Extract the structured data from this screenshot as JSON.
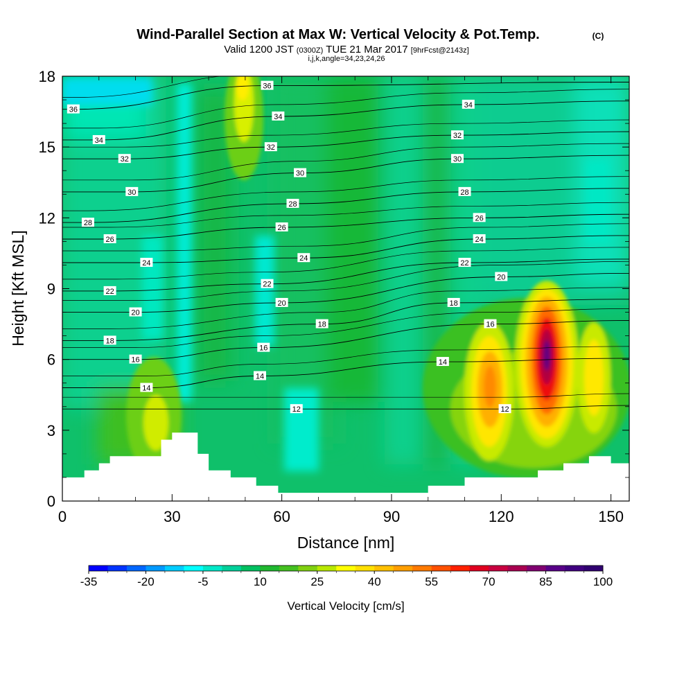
{
  "chart_data": {
    "type": "heatmap",
    "title": "Wind-Parallel Section at Max W: Vertical Velocity & Pot.Temp.",
    "title_unit": "(C)",
    "subtitle": {
      "prefix": "Valid 1200 JST",
      "zulu": "(0300Z)",
      "date": "TUE 21 Mar 2017",
      "forecast": "[9hrFcst@2143z]"
    },
    "indices": "i,j,k,angle=34,23,24,26",
    "xlabel": "Distance [nm]",
    "ylabel": "Height [Kft MSL]",
    "xlim": [
      0,
      155
    ],
    "ylim": [
      0,
      18
    ],
    "x_ticks": [
      0,
      30,
      60,
      90,
      120,
      150
    ],
    "y_ticks": [
      0,
      3,
      6,
      9,
      12,
      15,
      18
    ],
    "colorbar": {
      "label": "Vertical Velocity [cm/s]",
      "range": [
        -35,
        100
      ],
      "step": 5,
      "tick_labels": [
        -35,
        -20,
        -5,
        10,
        25,
        40,
        55,
        70,
        85,
        100
      ],
      "colors": [
        "#0000ff",
        "#0033ff",
        "#0066ff",
        "#0099ff",
        "#00ccff",
        "#00ffff",
        "#00e8c8",
        "#00d09a",
        "#00c060",
        "#20b830",
        "#44c020",
        "#80d010",
        "#b8e800",
        "#ffff00",
        "#ffe000",
        "#ffc000",
        "#ff9e00",
        "#ff7a00",
        "#ff5000",
        "#ff2000",
        "#e00020",
        "#c80040",
        "#a80050",
        "#800070",
        "#580088",
        "#400080",
        "#300070"
      ]
    },
    "updraft_cores": [
      {
        "x_nm": 133,
        "z_kft": 5.5,
        "w_cms": 100
      },
      {
        "x_nm": 117,
        "z_kft": 5.0,
        "w_cms": 62
      },
      {
        "x_nm": 146,
        "z_kft": 5.5,
        "w_cms": 40
      },
      {
        "x_nm": 52,
        "z_kft": 16.5,
        "w_cms": 32
      },
      {
        "x_nm": 24,
        "z_kft": 3.5,
        "w_cms": 30
      }
    ],
    "terrain_kft": [
      [
        0,
        1.0
      ],
      [
        6,
        1.0
      ],
      [
        6,
        1.3
      ],
      [
        10,
        1.3
      ],
      [
        10,
        1.6
      ],
      [
        13,
        1.6
      ],
      [
        13,
        1.9
      ],
      [
        27,
        1.9
      ],
      [
        27,
        2.6
      ],
      [
        30,
        2.6
      ],
      [
        30,
        2.9
      ],
      [
        37,
        2.9
      ],
      [
        37,
        2.0
      ],
      [
        40,
        2.0
      ],
      [
        40,
        1.3
      ],
      [
        46,
        1.3
      ],
      [
        46,
        1.0
      ],
      [
        53,
        1.0
      ],
      [
        53,
        0.65
      ],
      [
        59,
        0.65
      ],
      [
        59,
        0.35
      ],
      [
        100,
        0.35
      ],
      [
        100,
        0.65
      ],
      [
        110,
        0.65
      ],
      [
        110,
        1.0
      ],
      [
        130,
        1.0
      ],
      [
        130,
        1.3
      ],
      [
        137,
        1.3
      ],
      [
        137,
        1.6
      ],
      [
        144,
        1.6
      ],
      [
        144,
        1.9
      ],
      [
        150,
        1.9
      ],
      [
        150,
        1.6
      ],
      [
        155,
        1.6
      ]
    ],
    "theta_contours": [
      {
        "value": 12,
        "x_nm": 64,
        "z_kft": 3.9
      },
      {
        "value": 12,
        "x_nm": 121,
        "z_kft": 3.9
      },
      {
        "value": 14,
        "x_nm": 23,
        "z_kft": 4.8
      },
      {
        "value": 14,
        "x_nm": 54,
        "z_kft": 5.3
      },
      {
        "value": 14,
        "x_nm": 104,
        "z_kft": 5.9
      },
      {
        "value": 16,
        "x_nm": 20,
        "z_kft": 6.0
      },
      {
        "value": 16,
        "x_nm": 55,
        "z_kft": 6.5
      },
      {
        "value": 16,
        "x_nm": 117,
        "z_kft": 7.5
      },
      {
        "value": 18,
        "x_nm": 13,
        "z_kft": 6.8
      },
      {
        "value": 18,
        "x_nm": 71,
        "z_kft": 7.5
      },
      {
        "value": 18,
        "x_nm": 107,
        "z_kft": 8.4
      },
      {
        "value": 20,
        "x_nm": 20,
        "z_kft": 8.0
      },
      {
        "value": 20,
        "x_nm": 60,
        "z_kft": 8.4
      },
      {
        "value": 20,
        "x_nm": 120,
        "z_kft": 9.5
      },
      {
        "value": 22,
        "x_nm": 13,
        "z_kft": 8.9
      },
      {
        "value": 22,
        "x_nm": 56,
        "z_kft": 9.2
      },
      {
        "value": 22,
        "x_nm": 110,
        "z_kft": 10.1
      },
      {
        "value": 24,
        "x_nm": 23,
        "z_kft": 10.1
      },
      {
        "value": 24,
        "x_nm": 66,
        "z_kft": 10.3
      },
      {
        "value": 24,
        "x_nm": 114,
        "z_kft": 11.1
      },
      {
        "value": 26,
        "x_nm": 13,
        "z_kft": 11.1
      },
      {
        "value": 26,
        "x_nm": 60,
        "z_kft": 11.6
      },
      {
        "value": 26,
        "x_nm": 114,
        "z_kft": 12.0
      },
      {
        "value": 28,
        "x_nm": 7,
        "z_kft": 11.8
      },
      {
        "value": 28,
        "x_nm": 63,
        "z_kft": 12.6
      },
      {
        "value": 28,
        "x_nm": 110,
        "z_kft": 13.1
      },
      {
        "value": 30,
        "x_nm": 19,
        "z_kft": 13.1
      },
      {
        "value": 30,
        "x_nm": 65,
        "z_kft": 13.9
      },
      {
        "value": 30,
        "x_nm": 108,
        "z_kft": 14.5
      },
      {
        "value": 32,
        "x_nm": 17,
        "z_kft": 14.5
      },
      {
        "value": 32,
        "x_nm": 57,
        "z_kft": 15.0
      },
      {
        "value": 32,
        "x_nm": 108,
        "z_kft": 15.5
      },
      {
        "value": 34,
        "x_nm": 10,
        "z_kft": 15.3
      },
      {
        "value": 34,
        "x_nm": 59,
        "z_kft": 16.3
      },
      {
        "value": 34,
        "x_nm": 111,
        "z_kft": 16.8
      },
      {
        "value": 36,
        "x_nm": 3,
        "z_kft": 16.6
      },
      {
        "value": 36,
        "x_nm": 56,
        "z_kft": 17.6
      }
    ]
  }
}
